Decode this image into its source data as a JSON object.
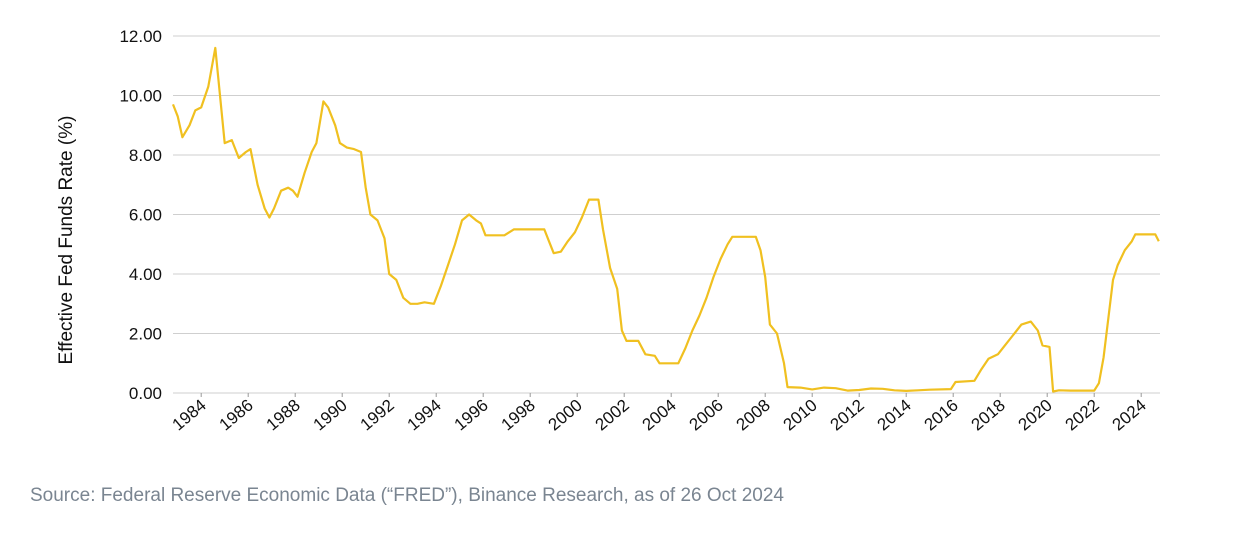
{
  "chart_data": {
    "type": "line",
    "y_label": "Effective Fed Funds Rate (%)",
    "source": "Source: Federal Reserve Economic Data (“FRED”), Binance Research, as of 26 Oct 2024",
    "xlim": [
      1982.8,
      2024.8
    ],
    "xticks": [
      1984,
      1986,
      1988,
      1990,
      1992,
      1994,
      1996,
      1998,
      2000,
      2002,
      2004,
      2006,
      2008,
      2010,
      2012,
      2014,
      2016,
      2018,
      2020,
      2022,
      2024
    ],
    "ylim": [
      0,
      12
    ],
    "yticks": [
      {
        "value": 0,
        "label": "0.00"
      },
      {
        "value": 2,
        "label": "2.00"
      },
      {
        "value": 4,
        "label": "4.00"
      },
      {
        "value": 6,
        "label": "6.00"
      },
      {
        "value": 8,
        "label": "8.00"
      },
      {
        "value": 10,
        "label": "10.00"
      },
      {
        "value": 12,
        "label": "12.00"
      }
    ],
    "grid": true,
    "series": [
      {
        "color": "#f0c020",
        "x": [
          1982.8,
          1983.0,
          1983.2,
          1983.5,
          1983.75,
          1984.0,
          1984.3,
          1984.6,
          1984.8,
          1985.0,
          1985.3,
          1985.6,
          1985.9,
          1986.1,
          1986.4,
          1986.7,
          1986.9,
          1987.1,
          1987.4,
          1987.7,
          1987.9,
          1988.1,
          1988.4,
          1988.7,
          1988.9,
          1989.2,
          1989.4,
          1989.7,
          1989.9,
          1990.2,
          1990.5,
          1990.8,
          1991.0,
          1991.2,
          1991.5,
          1991.8,
          1992.0,
          1992.3,
          1992.6,
          1992.9,
          1993.2,
          1993.5,
          1993.9,
          1994.2,
          1994.5,
          1994.8,
          1995.1,
          1995.4,
          1995.7,
          1995.9,
          1996.1,
          1996.5,
          1996.9,
          1997.3,
          1997.7,
          1998.1,
          1998.6,
          1998.8,
          1999.0,
          1999.3,
          1999.6,
          1999.9,
          2000.2,
          2000.5,
          2000.9,
          2001.1,
          2001.4,
          2001.7,
          2001.9,
          2002.1,
          2002.6,
          2002.9,
          2003.3,
          2003.5,
          2004.3,
          2004.6,
          2004.9,
          2005.2,
          2005.5,
          2005.8,
          2006.1,
          2006.4,
          2006.6,
          2007.6,
          2007.8,
          2008.0,
          2008.2,
          2008.5,
          2008.8,
          2008.95,
          2009.5,
          2010.0,
          2010.5,
          2011.0,
          2011.5,
          2012.0,
          2012.5,
          2013.0,
          2013.5,
          2014.0,
          2014.5,
          2015.0,
          2015.9,
          2016.1,
          2016.9,
          2017.2,
          2017.5,
          2017.9,
          2018.2,
          2018.5,
          2018.9,
          2019.3,
          2019.6,
          2019.8,
          2020.1,
          2020.25,
          2020.5,
          2021.0,
          2021.5,
          2022.0,
          2022.2,
          2022.4,
          2022.6,
          2022.8,
          2023.0,
          2023.3,
          2023.6,
          2023.75,
          2024.6,
          2024.75
        ],
        "values": [
          9.7,
          9.3,
          8.6,
          9.0,
          9.5,
          9.6,
          10.3,
          11.6,
          10.0,
          8.4,
          8.5,
          7.9,
          8.1,
          8.2,
          7.0,
          6.2,
          5.9,
          6.2,
          6.8,
          6.9,
          6.8,
          6.6,
          7.4,
          8.1,
          8.4,
          9.8,
          9.6,
          9.0,
          8.4,
          8.25,
          8.2,
          8.1,
          6.9,
          6.0,
          5.8,
          5.2,
          4.0,
          3.8,
          3.2,
          3.0,
          3.0,
          3.05,
          3.0,
          3.6,
          4.3,
          5.0,
          5.8,
          6.0,
          5.8,
          5.7,
          5.3,
          5.3,
          5.3,
          5.5,
          5.5,
          5.5,
          5.5,
          5.1,
          4.7,
          4.75,
          5.1,
          5.4,
          5.9,
          6.5,
          6.5,
          5.5,
          4.2,
          3.5,
          2.1,
          1.75,
          1.75,
          1.3,
          1.25,
          1.0,
          1.0,
          1.5,
          2.1,
          2.6,
          3.2,
          3.9,
          4.5,
          5.0,
          5.25,
          5.25,
          4.8,
          3.9,
          2.3,
          2.0,
          1.0,
          0.2,
          0.18,
          0.12,
          0.18,
          0.16,
          0.08,
          0.1,
          0.15,
          0.14,
          0.09,
          0.07,
          0.09,
          0.11,
          0.13,
          0.37,
          0.41,
          0.8,
          1.15,
          1.3,
          1.6,
          1.9,
          2.3,
          2.4,
          2.1,
          1.6,
          1.55,
          0.05,
          0.09,
          0.08,
          0.08,
          0.08,
          0.33,
          1.2,
          2.5,
          3.8,
          4.3,
          4.8,
          5.1,
          5.33,
          5.33,
          5.1
        ]
      }
    ]
  }
}
